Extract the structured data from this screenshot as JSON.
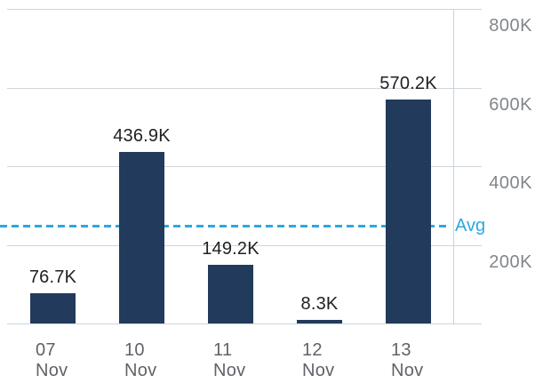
{
  "chart_data": {
    "type": "bar",
    "categories": [
      {
        "day": "07",
        "month": "Nov"
      },
      {
        "day": "10",
        "month": "Nov"
      },
      {
        "day": "11",
        "month": "Nov"
      },
      {
        "day": "12",
        "month": "Nov"
      },
      {
        "day": "13",
        "month": "Nov"
      }
    ],
    "values_k": [
      76.7,
      436.9,
      149.2,
      8.3,
      570.2
    ],
    "value_labels": [
      "76.7K",
      "436.9K",
      "149.2K",
      "8.3K",
      "570.2K"
    ],
    "yticks": [
      {
        "value_k": 800,
        "label": "800K"
      },
      {
        "value_k": 600,
        "label": "600K"
      },
      {
        "value_k": 400,
        "label": "400K"
      },
      {
        "value_k": 200,
        "label": "200K"
      }
    ],
    "ylim_k": [
      0,
      800
    ],
    "grid": true,
    "y_axis_position": "right",
    "avg_line": {
      "label": "Avg",
      "value_k": 248.3,
      "style": "dashed"
    }
  },
  "colors": {
    "bar": "#223A5C",
    "avg_line": "#2AA9E0",
    "gridline": "#CDD6DC",
    "axis_line": "#C9D2D9",
    "y_tick_text": "#80868B",
    "x_tick_text": "#5F6368",
    "value_label_text": "#202124",
    "background": "#FFFFFF"
  }
}
